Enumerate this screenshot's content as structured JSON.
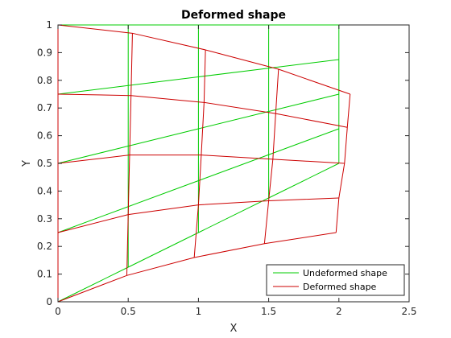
{
  "chart_data": {
    "type": "line",
    "title": "Deformed shape",
    "xlabel": "X",
    "ylabel": "Y",
    "xlim": [
      0,
      2.5
    ],
    "ylim": [
      0,
      1
    ],
    "xticks": [
      0,
      0.5,
      1,
      1.5,
      2,
      2.5
    ],
    "yticks": [
      0,
      0.1,
      0.2,
      0.3,
      0.4,
      0.5,
      0.6,
      0.7,
      0.8,
      0.9,
      1
    ],
    "xtick_labels": [
      "0",
      "0.5",
      "1",
      "1.5",
      "2",
      "2.5"
    ],
    "ytick_labels": [
      "0",
      "0.1",
      "0.2",
      "0.3",
      "0.4",
      "0.5",
      "0.6",
      "0.7",
      "0.8",
      "0.9",
      "1"
    ],
    "grid": false,
    "legend_position": "bottom-right",
    "series": [
      {
        "name": "Undeformed shape",
        "color": "#00cc00",
        "nodes": [
          [
            [
              0,
              0
            ],
            [
              0.5,
              0.125
            ],
            [
              1.0,
              0.25
            ],
            [
              1.5,
              0.375
            ],
            [
              2.0,
              0.5
            ]
          ],
          [
            [
              0,
              0.25
            ],
            [
              0.5,
              0.3438
            ],
            [
              1.0,
              0.4375
            ],
            [
              1.5,
              0.5313
            ],
            [
              2.0,
              0.625
            ]
          ],
          [
            [
              0,
              0.5
            ],
            [
              0.5,
              0.5625
            ],
            [
              1.0,
              0.625
            ],
            [
              1.5,
              0.6875
            ],
            [
              2.0,
              0.75
            ]
          ],
          [
            [
              0,
              0.75
            ],
            [
              0.5,
              0.7813
            ],
            [
              1.0,
              0.8125
            ],
            [
              1.5,
              0.8438
            ],
            [
              2.0,
              0.875
            ]
          ],
          [
            [
              0,
              1.0
            ],
            [
              0.5,
              1.0
            ],
            [
              1.0,
              1.0
            ],
            [
              1.5,
              1.0
            ],
            [
              2.0,
              1.0
            ]
          ]
        ]
      },
      {
        "name": "Deformed shape",
        "color": "#cc0000",
        "nodes": [
          [
            [
              0,
              0
            ],
            [
              0.49,
              0.095
            ],
            [
              0.97,
              0.16
            ],
            [
              1.47,
              0.21
            ],
            [
              1.98,
              0.25
            ]
          ],
          [
            [
              0,
              0.25
            ],
            [
              0.5,
              0.315
            ],
            [
              1.0,
              0.35
            ],
            [
              1.5,
              0.365
            ],
            [
              2.0,
              0.375
            ]
          ],
          [
            [
              0,
              0.5
            ],
            [
              0.51,
              0.53
            ],
            [
              1.02,
              0.53
            ],
            [
              1.53,
              0.515
            ],
            [
              2.04,
              0.5
            ]
          ],
          [
            [
              0,
              0.75
            ],
            [
              0.52,
              0.745
            ],
            [
              1.04,
              0.72
            ],
            [
              1.55,
              0.68
            ],
            [
              2.06,
              0.63
            ]
          ],
          [
            [
              0,
              1.0
            ],
            [
              0.53,
              0.97
            ],
            [
              1.05,
              0.91
            ],
            [
              1.57,
              0.84
            ],
            [
              2.08,
              0.75
            ]
          ]
        ]
      }
    ]
  }
}
